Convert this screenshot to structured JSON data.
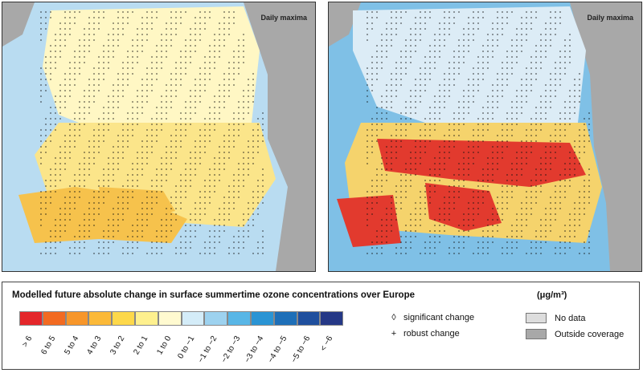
{
  "maps": [
    {
      "label": "Daily maxima",
      "colors": {
        "sea": "#b9dcf1",
        "outside": "#a8a8a8",
        "land_north": "#fff7c4",
        "land_mid": "#fbe58a",
        "land_south": "#f6c24c"
      }
    },
    {
      "label": "Daily maxima",
      "colors": {
        "sea": "#7fc0e6",
        "outside": "#a8a8a8",
        "land_north": "#dcecf6",
        "land_mid": "#f5d36c",
        "land_south": "#e23a2e"
      }
    }
  ],
  "legend": {
    "title": "Modelled future absolute change in surface summertime ozone concentrations over Europe",
    "unit": "(μg/m³)",
    "classes": [
      {
        "label": "> 6",
        "color": "#e4262a"
      },
      {
        "label": "6 to 5",
        "color": "#f26a21"
      },
      {
        "label": "5 to 4",
        "color": "#f7962a"
      },
      {
        "label": "4 to 3",
        "color": "#fbb938"
      },
      {
        "label": "3 to 2",
        "color": "#fdd84a"
      },
      {
        "label": "2 to 1",
        "color": "#fef08e"
      },
      {
        "label": "1 to 0",
        "color": "#fffad0"
      },
      {
        "label": "0 to −1",
        "color": "#d4ecf8"
      },
      {
        "label": "−1 to −2",
        "color": "#9dd2ef"
      },
      {
        "label": "−2 to −3",
        "color": "#58b6e6"
      },
      {
        "label": "−3 to −4",
        "color": "#2a94d4"
      },
      {
        "label": "−4 to −5",
        "color": "#1e6fb8"
      },
      {
        "label": "−5 to −6",
        "color": "#1f4f9e"
      },
      {
        "label": "< −6",
        "color": "#253886"
      }
    ],
    "markers": [
      {
        "glyph": "◊",
        "label": "significant change"
      },
      {
        "glyph": "+",
        "label": "robust change"
      }
    ],
    "coverage": [
      {
        "label": "No data",
        "color": "#dddddd"
      },
      {
        "label": "Outside coverage",
        "color": "#a8a8a8"
      }
    ]
  }
}
